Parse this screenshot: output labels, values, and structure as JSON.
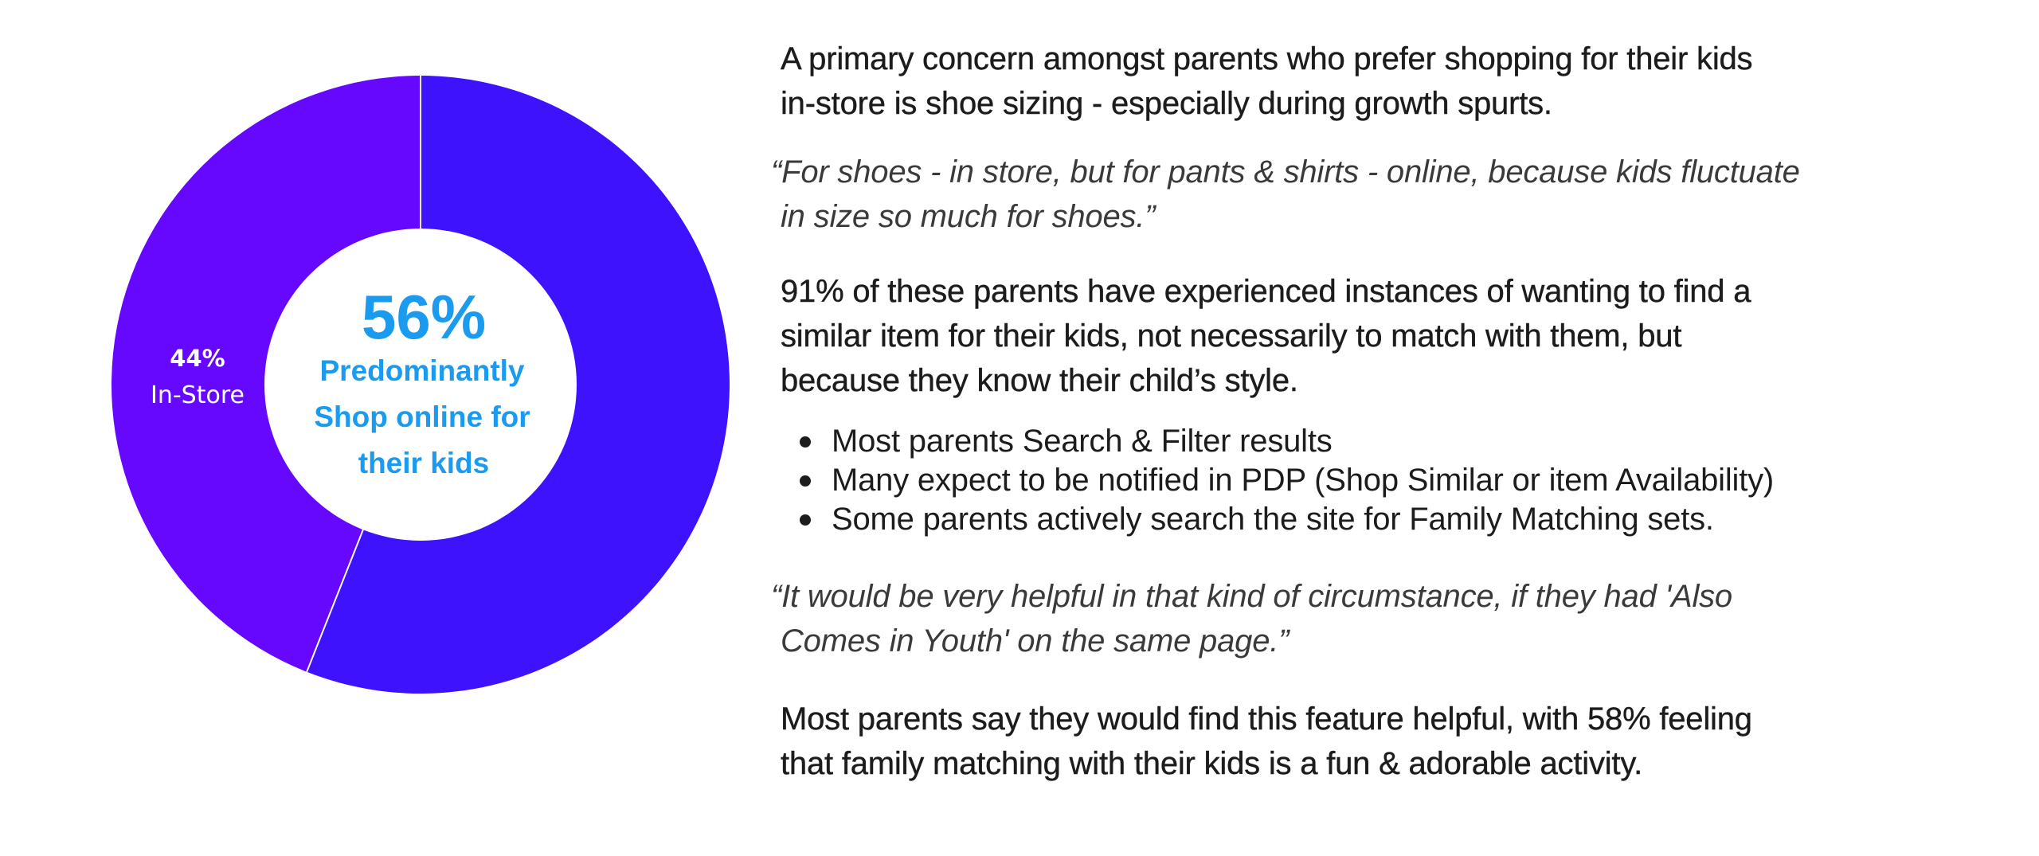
{
  "chart_data": {
    "type": "pie",
    "variant": "donut",
    "slices": [
      {
        "label": "Predominantly Shop online for their kids",
        "value": 56,
        "color": "#3f12fe"
      },
      {
        "label": "In-Store",
        "value": 44,
        "color": "#6508fd"
      }
    ],
    "center_label": {
      "value": "56%",
      "lines": [
        "Predominantly",
        "Shop online for",
        "their kids"
      ]
    },
    "slice_label": {
      "value": "44%",
      "text": "In-Store"
    }
  },
  "content": {
    "intro": [
      "A primary concern amongst parents who prefer shopping for their kids",
      "in-store is shoe sizing - especially during growth spurts."
    ],
    "quote_1": [
      "“For shoes - in store, but for pants & shirts - online, because kids fluctuate",
      "in size so much for shoes.”"
    ],
    "finding": [
      "91% of these parents have experienced instances of wanting to find a",
      "similar item for their kids, not necessarily to match with them, but",
      "because they know their child’s style."
    ],
    "bullets": [
      "Most parents Search & Filter results",
      "Many expect to be notified in PDP (Shop Similar or item Availability)",
      "Some parents actively search the site for Family Matching sets."
    ],
    "quote_2": [
      "“It would be very helpful in that kind of circumstance, if they had 'Also",
      "Comes in Youth' on the same page.”"
    ],
    "conclusion": [
      "Most parents say they would find this feature helpful, with 58% feeling",
      "that family matching with their kids is a fun & adorable activity."
    ]
  }
}
